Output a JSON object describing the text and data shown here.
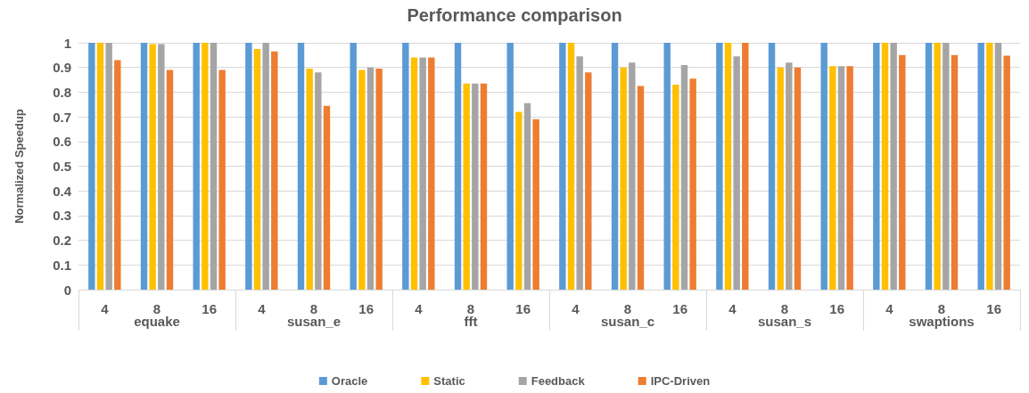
{
  "chart_data": {
    "type": "bar",
    "title": "Performance comparison",
    "ylabel": "Normalized Speedup",
    "categories": [
      "4",
      "8",
      "16",
      "4",
      "8",
      "16",
      "4",
      "8",
      "16",
      "4",
      "8",
      "16",
      "4",
      "8",
      "16",
      "4",
      "8",
      "16"
    ],
    "annotations": [
      "equake",
      "susan_e",
      "fft",
      "susan_c",
      "susan_s",
      "swaptions"
    ],
    "series": [
      {
        "name": "Oracle",
        "color": "#5b9bd5",
        "values": [
          1,
          1,
          1,
          1,
          1,
          1,
          1,
          1,
          1,
          1,
          1,
          1,
          1,
          1,
          1,
          1,
          1,
          1
        ]
      },
      {
        "name": "Static",
        "color": "#ffc000",
        "values": [
          1,
          0.995,
          1,
          0.975,
          0.895,
          0.89,
          0.94,
          0.835,
          0.72,
          1,
          0.9,
          0.83,
          1,
          0.9,
          0.905,
          1,
          1,
          1
        ]
      },
      {
        "name": "Feedback",
        "color": "#a5a5a5",
        "values": [
          1,
          0.995,
          1,
          1,
          0.88,
          0.9,
          0.94,
          0.835,
          0.755,
          0.945,
          0.92,
          0.91,
          0.945,
          0.92,
          0.905,
          1,
          1,
          1
        ]
      },
      {
        "name": "IPC-Driven",
        "color": "#ed7d31",
        "values": [
          0.93,
          0.89,
          0.89,
          0.965,
          0.745,
          0.895,
          0.94,
          0.835,
          0.69,
          0.88,
          0.825,
          0.855,
          1,
          0.9,
          0.905,
          0.95,
          0.95,
          0.948
        ]
      }
    ],
    "ylim": [
      0,
      1
    ],
    "yticks": [
      0,
      0.1,
      0.2,
      0.3,
      0.4,
      0.5,
      0.6,
      0.7,
      0.8,
      0.9,
      1
    ],
    "grid": "y",
    "legend": "bottom"
  }
}
